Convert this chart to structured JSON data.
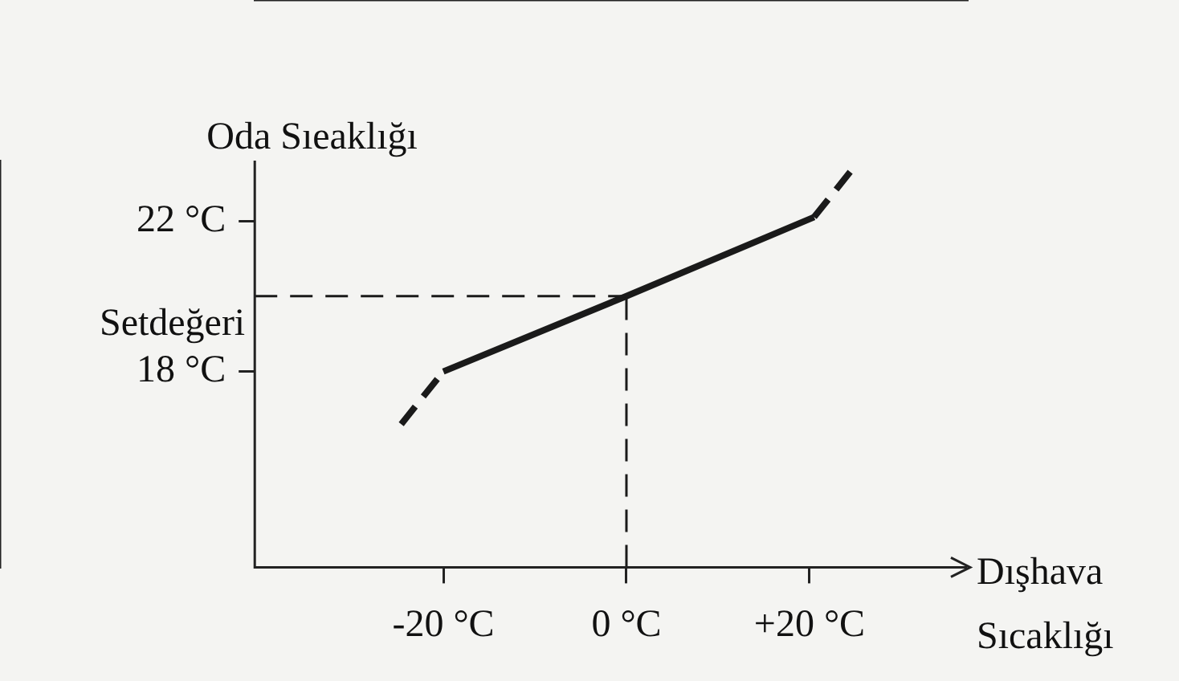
{
  "chart_data": {
    "type": "line",
    "xlabel": "Dışhava Sıcaklığı",
    "ylabel": "Oda Sıeaklığı",
    "xlim": [
      -40.6,
      37.2
    ],
    "ylim": [
      12.8,
      23.6
    ],
    "xticks": [
      {
        "value": -20,
        "label": "-20 °C"
      },
      {
        "value": 0,
        "label": "0 °C"
      },
      {
        "value": 20,
        "label": "+20 °C"
      }
    ],
    "yticks": [
      {
        "value": 18,
        "label": "18 °C"
      },
      {
        "value": 22,
        "label": "22 °C"
      }
    ],
    "grid": false,
    "legend": false,
    "marker": "none",
    "series": [
      {
        "color": "#1a1a1a",
        "x": [
          -20,
          0,
          20.5
        ],
        "values": [
          18,
          20,
          22.1
        ],
        "line_style": "solid"
      },
      {
        "color": "#1a1a1a",
        "x": [
          -24.6,
          -20
        ],
        "values": [
          16.6,
          18
        ],
        "line_style": "dashed"
      },
      {
        "color": "#1a1a1a",
        "x": [
          20.5,
          25.1
        ],
        "values": [
          22.1,
          23.5
        ],
        "line_style": "dashed"
      }
    ],
    "ref_lines": [
      {
        "axis": "y",
        "value": 20,
        "label": "Setdeğeri",
        "line_style": "dashed",
        "color": "#1a1a1a"
      },
      {
        "axis": "x",
        "value": 0,
        "line_style": "dashed",
        "color": "#1a1a1a"
      }
    ]
  }
}
